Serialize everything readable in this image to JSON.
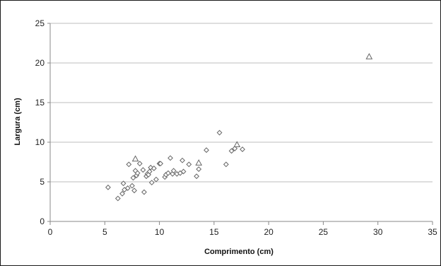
{
  "chart_data": {
    "type": "scatter",
    "xlabel": "Comprimento (cm)",
    "ylabel": "Largura (cm)",
    "xlim": [
      0,
      35
    ],
    "ylim": [
      0,
      25
    ],
    "x_ticks": [
      0,
      5,
      10,
      15,
      20,
      25,
      30,
      35
    ],
    "y_ticks": [
      0,
      5,
      10,
      15,
      20,
      25
    ],
    "grid": "horizontal",
    "series": [
      {
        "marker": "diamond",
        "color": "#666666",
        "points": [
          [
            5.3,
            4.3
          ],
          [
            6.2,
            2.9
          ],
          [
            6.6,
            3.5
          ],
          [
            6.7,
            4.8
          ],
          [
            6.8,
            4.0
          ],
          [
            7.1,
            4.2
          ],
          [
            7.2,
            7.2
          ],
          [
            7.5,
            4.5
          ],
          [
            7.6,
            5.5
          ],
          [
            7.7,
            3.9
          ],
          [
            7.8,
            6.4
          ],
          [
            7.9,
            5.8
          ],
          [
            8.0,
            6.1
          ],
          [
            8.2,
            7.3
          ],
          [
            8.5,
            6.5
          ],
          [
            8.6,
            3.7
          ],
          [
            8.8,
            5.7
          ],
          [
            8.9,
            6.0
          ],
          [
            9.0,
            5.9
          ],
          [
            9.1,
            6.3
          ],
          [
            9.2,
            6.8
          ],
          [
            9.3,
            4.9
          ],
          [
            9.5,
            6.7
          ],
          [
            9.7,
            5.3
          ],
          [
            10.0,
            7.3
          ],
          [
            10.1,
            7.3
          ],
          [
            10.5,
            5.6
          ],
          [
            10.6,
            5.9
          ],
          [
            10.8,
            6.1
          ],
          [
            11.0,
            8.0
          ],
          [
            11.2,
            6.0
          ],
          [
            11.3,
            6.4
          ],
          [
            11.6,
            6.0
          ],
          [
            11.9,
            6.1
          ],
          [
            12.1,
            7.7
          ],
          [
            12.2,
            6.3
          ],
          [
            12.7,
            7.2
          ],
          [
            13.4,
            5.7
          ],
          [
            13.6,
            6.6
          ],
          [
            14.3,
            9.0
          ],
          [
            15.5,
            11.2
          ],
          [
            16.1,
            7.2
          ],
          [
            16.6,
            8.9
          ],
          [
            16.9,
            9.2
          ],
          [
            17.6,
            9.1
          ]
        ]
      },
      {
        "marker": "triangle",
        "color": "#666666",
        "points": [
          [
            7.8,
            7.9
          ],
          [
            13.6,
            7.4
          ],
          [
            17.1,
            9.7
          ],
          [
            29.2,
            20.8
          ]
        ]
      }
    ]
  }
}
